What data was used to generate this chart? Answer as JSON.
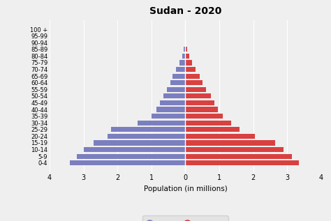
{
  "title": "Sudan - 2020",
  "xlabel": "Population (in millions)",
  "age_groups": [
    "0-4",
    "5-9",
    "10-14",
    "15-19",
    "20-24",
    "25-29",
    "30-34",
    "35-39",
    "40-44",
    "45-49",
    "50-54",
    "55-59",
    "60-64",
    "65-69",
    "70-74",
    "75-79",
    "80-84",
    "85-89",
    "90-94",
    "95-99",
    "100 +"
  ],
  "male": [
    3.4,
    3.2,
    3.0,
    2.7,
    2.3,
    2.2,
    1.4,
    1.0,
    0.85,
    0.75,
    0.65,
    0.55,
    0.45,
    0.38,
    0.28,
    0.18,
    0.1,
    0.05,
    0.01,
    0.005,
    0.002
  ],
  "female": [
    3.35,
    3.15,
    2.9,
    2.65,
    2.05,
    1.6,
    1.35,
    1.1,
    0.95,
    0.85,
    0.75,
    0.6,
    0.5,
    0.42,
    0.3,
    0.2,
    0.12,
    0.055,
    0.01,
    0.005,
    0.002
  ],
  "male_color": "#7b7fbf",
  "female_color": "#d94040",
  "xlim": 4,
  "bg_color": "#efefef",
  "legend_bg": "#e0e0e0",
  "bar_height": 0.75
}
